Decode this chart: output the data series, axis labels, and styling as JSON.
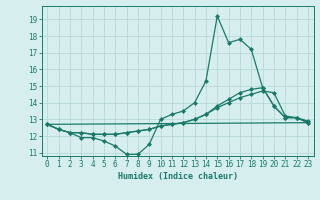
{
  "xlabel": "Humidex (Indice chaleur)",
  "bg_color": "#d6eeee",
  "grid_color": "#b8d8d8",
  "line_color": "#1a7a6a",
  "xlim": [
    -0.5,
    23.5
  ],
  "ylim": [
    10.8,
    19.8
  ],
  "yticks": [
    11,
    12,
    13,
    14,
    15,
    16,
    17,
    18,
    19
  ],
  "xticks": [
    0,
    1,
    2,
    3,
    4,
    5,
    6,
    7,
    8,
    9,
    10,
    11,
    12,
    13,
    14,
    15,
    16,
    17,
    18,
    19,
    20,
    21,
    22,
    23
  ],
  "line1_x": [
    0,
    1,
    2,
    3,
    4,
    5,
    6,
    7,
    8,
    9,
    10,
    11,
    12,
    13,
    14,
    15,
    16,
    17,
    18,
    19,
    20,
    21,
    22,
    23
  ],
  "line1_y": [
    12.7,
    12.4,
    12.2,
    11.9,
    11.9,
    11.7,
    11.4,
    10.9,
    10.9,
    11.5,
    13.0,
    13.3,
    13.5,
    14.0,
    15.3,
    19.2,
    17.6,
    17.8,
    17.2,
    14.9,
    13.8,
    13.1,
    13.1,
    12.8
  ],
  "line2_x": [
    0,
    1,
    2,
    3,
    4,
    5,
    6,
    7,
    8,
    9,
    10,
    11,
    12,
    13,
    14,
    15,
    16,
    17,
    18,
    19,
    20,
    21,
    22,
    23
  ],
  "line2_y": [
    12.7,
    12.4,
    12.2,
    12.2,
    12.1,
    12.1,
    12.1,
    12.2,
    12.3,
    12.4,
    12.6,
    12.7,
    12.8,
    13.0,
    13.3,
    13.7,
    14.0,
    14.3,
    14.5,
    14.7,
    14.6,
    13.2,
    13.1,
    12.9
  ],
  "line3_x": [
    0,
    1,
    2,
    3,
    4,
    5,
    6,
    7,
    8,
    9,
    10,
    11,
    12,
    13,
    14,
    15,
    16,
    17,
    18,
    19,
    20,
    21,
    22,
    23
  ],
  "line3_y": [
    12.7,
    12.4,
    12.2,
    12.2,
    12.1,
    12.1,
    12.1,
    12.2,
    12.3,
    12.4,
    12.6,
    12.7,
    12.8,
    13.0,
    13.3,
    13.8,
    14.2,
    14.6,
    14.8,
    14.9,
    13.8,
    13.1,
    13.1,
    12.8
  ],
  "line4_x": [
    0,
    23
  ],
  "line4_y": [
    12.7,
    12.8
  ]
}
